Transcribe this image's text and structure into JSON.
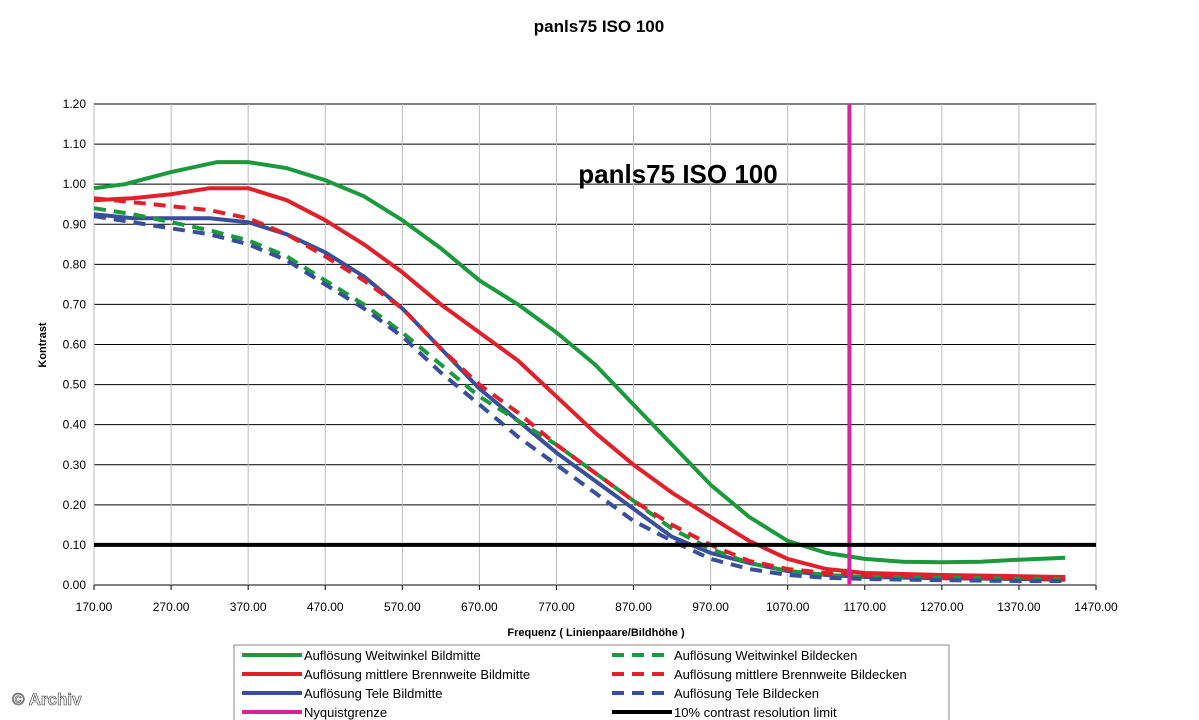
{
  "chart_data": {
    "type": "line",
    "title": "panls75 ISO 100",
    "inner_title": "panls75 ISO 100",
    "xlabel": "Frequenz ( Linienpaare/Bildhöhe )",
    "ylabel": "Kontrast",
    "xlim": [
      170,
      1470
    ],
    "ylim": [
      0,
      1.2
    ],
    "x_ticks": [
      "170.00",
      "270.00",
      "370.00",
      "470.00",
      "570.00",
      "670.00",
      "770.00",
      "870.00",
      "970.00",
      "1070.00",
      "1170.00",
      "1270.00",
      "1370.00",
      "1470.00"
    ],
    "y_ticks": [
      "0.00",
      "0.10",
      "0.20",
      "0.30",
      "0.40",
      "0.50",
      "0.60",
      "0.70",
      "0.80",
      "0.90",
      "1.00",
      "1.10",
      "1.20"
    ],
    "grid": true,
    "series": [
      {
        "name": "Auflösung Weitwinkel Bildmitte",
        "color": "#1a9a3c",
        "dash": "solid",
        "points": [
          [
            170,
            0.99
          ],
          [
            210,
            1.0
          ],
          [
            270,
            1.03
          ],
          [
            330,
            1.055
          ],
          [
            370,
            1.055
          ],
          [
            420,
            1.04
          ],
          [
            470,
            1.01
          ],
          [
            520,
            0.97
          ],
          [
            570,
            0.91
          ],
          [
            620,
            0.84
          ],
          [
            670,
            0.76
          ],
          [
            720,
            0.7
          ],
          [
            770,
            0.63
          ],
          [
            820,
            0.55
          ],
          [
            870,
            0.45
          ],
          [
            920,
            0.35
          ],
          [
            970,
            0.25
          ],
          [
            1020,
            0.17
          ],
          [
            1070,
            0.11
          ],
          [
            1120,
            0.08
          ],
          [
            1170,
            0.065
          ],
          [
            1220,
            0.058
          ],
          [
            1270,
            0.057
          ],
          [
            1320,
            0.058
          ],
          [
            1370,
            0.063
          ],
          [
            1430,
            0.068
          ]
        ]
      },
      {
        "name": "Auflösung mittlere Brennweite Bildmitte",
        "color": "#e0202a",
        "dash": "solid",
        "points": [
          [
            170,
            0.96
          ],
          [
            220,
            0.965
          ],
          [
            270,
            0.975
          ],
          [
            320,
            0.99
          ],
          [
            370,
            0.99
          ],
          [
            420,
            0.96
          ],
          [
            470,
            0.91
          ],
          [
            520,
            0.85
          ],
          [
            570,
            0.78
          ],
          [
            620,
            0.7
          ],
          [
            670,
            0.63
          ],
          [
            720,
            0.56
          ],
          [
            770,
            0.47
          ],
          [
            820,
            0.38
          ],
          [
            870,
            0.3
          ],
          [
            920,
            0.23
          ],
          [
            970,
            0.17
          ],
          [
            1020,
            0.11
          ],
          [
            1070,
            0.065
          ],
          [
            1120,
            0.04
          ],
          [
            1170,
            0.03
          ],
          [
            1270,
            0.025
          ],
          [
            1370,
            0.022
          ],
          [
            1430,
            0.02
          ]
        ]
      },
      {
        "name": "Auflösung Tele Bildmitte",
        "color": "#3a4f9c",
        "dash": "solid",
        "points": [
          [
            170,
            0.925
          ],
          [
            220,
            0.915
          ],
          [
            270,
            0.915
          ],
          [
            320,
            0.915
          ],
          [
            370,
            0.905
          ],
          [
            420,
            0.875
          ],
          [
            470,
            0.83
          ],
          [
            520,
            0.77
          ],
          [
            570,
            0.69
          ],
          [
            620,
            0.59
          ],
          [
            670,
            0.49
          ],
          [
            720,
            0.41
          ],
          [
            770,
            0.33
          ],
          [
            820,
            0.26
          ],
          [
            870,
            0.19
          ],
          [
            920,
            0.12
          ],
          [
            970,
            0.08
          ],
          [
            1020,
            0.055
          ],
          [
            1070,
            0.035
          ],
          [
            1120,
            0.025
          ],
          [
            1170,
            0.02
          ],
          [
            1270,
            0.017
          ],
          [
            1370,
            0.015
          ],
          [
            1430,
            0.013
          ]
        ]
      },
      {
        "name": "Nyquistgrenze",
        "color": "#d8249a",
        "dash": "solid",
        "vertical": true,
        "points": [
          [
            1150,
            0
          ],
          [
            1150,
            1.2
          ]
        ]
      },
      {
        "name": "Auflösung Weitwinkel Bildecken",
        "color": "#1a9a3c",
        "dash": "dashed",
        "points": [
          [
            170,
            0.94
          ],
          [
            220,
            0.925
          ],
          [
            270,
            0.905
          ],
          [
            320,
            0.885
          ],
          [
            370,
            0.86
          ],
          [
            420,
            0.82
          ],
          [
            470,
            0.76
          ],
          [
            520,
            0.7
          ],
          [
            570,
            0.63
          ],
          [
            620,
            0.55
          ],
          [
            670,
            0.47
          ],
          [
            720,
            0.41
          ],
          [
            770,
            0.35
          ],
          [
            820,
            0.28
          ],
          [
            870,
            0.21
          ],
          [
            920,
            0.14
          ],
          [
            970,
            0.09
          ],
          [
            1020,
            0.055
          ],
          [
            1070,
            0.035
          ],
          [
            1120,
            0.025
          ],
          [
            1170,
            0.02
          ],
          [
            1270,
            0.018
          ],
          [
            1370,
            0.016
          ],
          [
            1430,
            0.015
          ]
        ]
      },
      {
        "name": "Auflösung mittlere Brennweite Bildecken",
        "color": "#e0202a",
        "dash": "dashed",
        "points": [
          [
            170,
            0.965
          ],
          [
            220,
            0.955
          ],
          [
            270,
            0.945
          ],
          [
            320,
            0.935
          ],
          [
            370,
            0.915
          ],
          [
            420,
            0.875
          ],
          [
            470,
            0.82
          ],
          [
            520,
            0.76
          ],
          [
            570,
            0.69
          ],
          [
            620,
            0.59
          ],
          [
            670,
            0.5
          ],
          [
            720,
            0.43
          ],
          [
            770,
            0.35
          ],
          [
            820,
            0.28
          ],
          [
            870,
            0.21
          ],
          [
            920,
            0.15
          ],
          [
            970,
            0.1
          ],
          [
            1020,
            0.06
          ],
          [
            1070,
            0.04
          ],
          [
            1120,
            0.03
          ],
          [
            1170,
            0.025
          ],
          [
            1270,
            0.02
          ],
          [
            1370,
            0.018
          ],
          [
            1430,
            0.015
          ]
        ]
      },
      {
        "name": "Auflösung Tele Bildecken",
        "color": "#3a4f9c",
        "dash": "dashed",
        "points": [
          [
            170,
            0.92
          ],
          [
            220,
            0.905
          ],
          [
            270,
            0.89
          ],
          [
            320,
            0.875
          ],
          [
            370,
            0.85
          ],
          [
            420,
            0.81
          ],
          [
            470,
            0.75
          ],
          [
            520,
            0.69
          ],
          [
            570,
            0.62
          ],
          [
            620,
            0.53
          ],
          [
            670,
            0.45
          ],
          [
            720,
            0.37
          ],
          [
            770,
            0.3
          ],
          [
            820,
            0.23
          ],
          [
            870,
            0.16
          ],
          [
            920,
            0.11
          ],
          [
            970,
            0.065
          ],
          [
            1020,
            0.04
          ],
          [
            1070,
            0.025
          ],
          [
            1120,
            0.018
          ],
          [
            1170,
            0.015
          ],
          [
            1270,
            0.012
          ],
          [
            1370,
            0.01
          ],
          [
            1430,
            0.01
          ]
        ]
      },
      {
        "name": "10% contrast resolution limit",
        "color": "#000000",
        "dash": "solid",
        "horizontal": true,
        "points": [
          [
            170,
            0.1
          ],
          [
            1470,
            0.1
          ]
        ]
      }
    ],
    "legend_order": [
      "Auflösung Weitwinkel Bildmitte",
      "Auflösung Weitwinkel Bildecken",
      "Auflösung mittlere Brennweite Bildmitte",
      "Auflösung mittlere Brennweite Bildecken",
      "Auflösung Tele Bildmitte",
      "Auflösung Tele Bildecken",
      "Nyquistgrenze",
      "10% contrast resolution limit"
    ]
  },
  "copyright": "© Archiv"
}
